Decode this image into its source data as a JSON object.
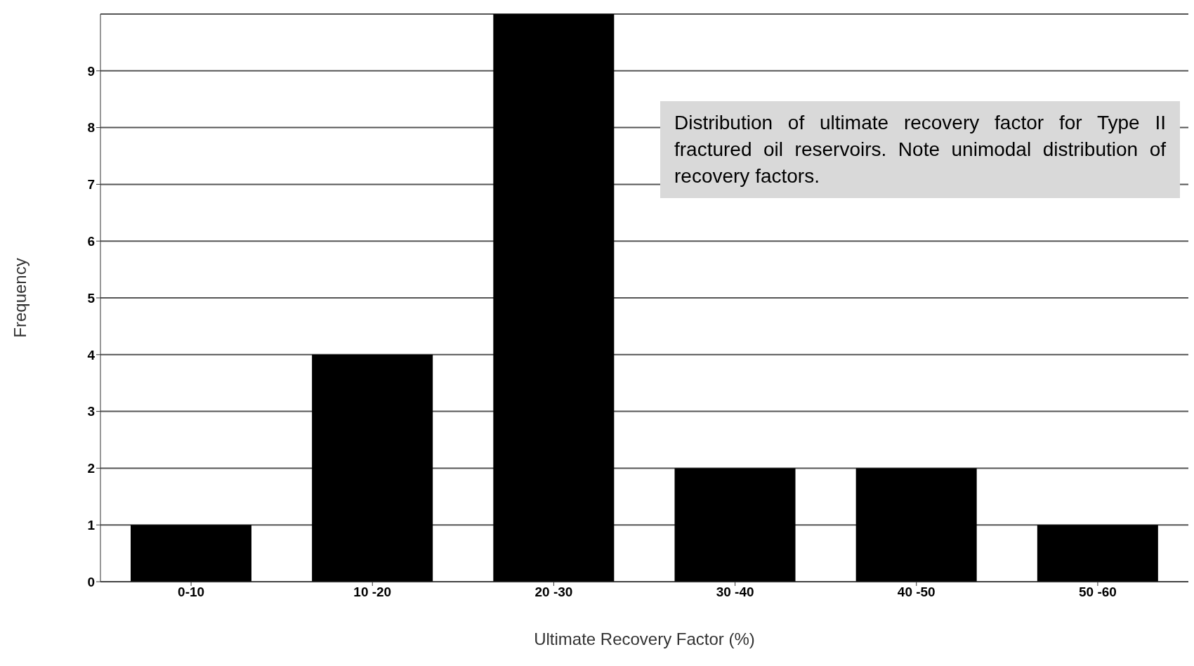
{
  "chart_data": {
    "type": "bar",
    "xlabel": "Ultimate Recovery Factor (%)",
    "ylabel": "Frequency",
    "categories": [
      "0-10",
      "10 -20",
      "20 -30",
      "30 -40",
      "40 -50",
      "50 -60"
    ],
    "values": [
      1,
      4,
      10,
      2,
      2,
      1
    ],
    "color": "#000000",
    "ylim": [
      0,
      10
    ],
    "yticks": [
      0,
      1,
      2,
      3,
      4,
      5,
      6,
      7,
      8,
      9
    ],
    "grid": "y",
    "annotations": [
      "Distribution of ultimate recovery factor for Type II fractured oil reservoirs. Note unimodal distribution of recovery factors."
    ]
  }
}
